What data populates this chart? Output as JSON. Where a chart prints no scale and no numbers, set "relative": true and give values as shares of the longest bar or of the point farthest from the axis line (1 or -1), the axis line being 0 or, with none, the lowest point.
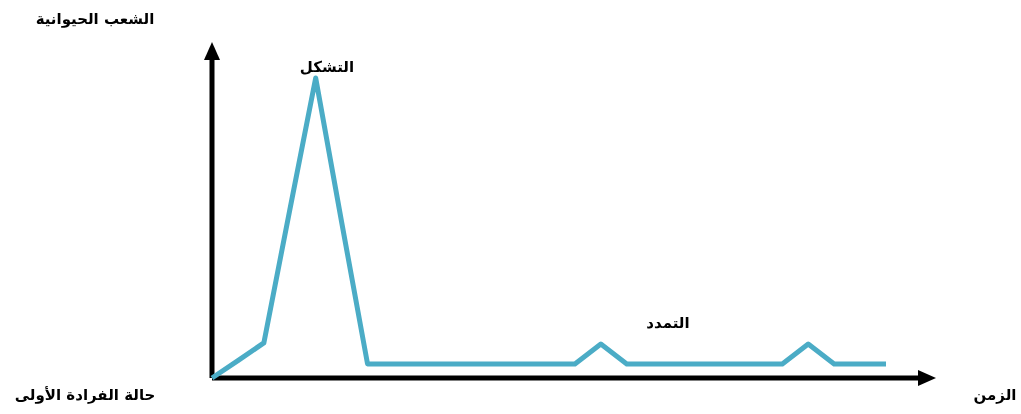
{
  "chart_data": {
    "type": "line",
    "relative": true,
    "line_style": "solid",
    "xlabel": "الزمن",
    "categories": [
      null,
      null,
      null,
      null,
      null,
      null,
      null,
      null,
      null,
      null,
      null,
      null,
      null,
      null,
      null,
      null,
      null,
      null,
      null,
      null,
      null,
      null,
      null,
      null,
      null,
      null,
      null
    ],
    "series": [
      {
        "color": "#4bacc6",
        "values": [
          0,
          0.058,
          0.117,
          0.56,
          1,
          0.52,
          0.047,
          0.047,
          0.047,
          0.047,
          0.047,
          0.047,
          0.047,
          0.047,
          0.047,
          0.113,
          0.047,
          0.047,
          0.047,
          0.047,
          0.047,
          0.047,
          0.047,
          0.113,
          0.047,
          0.047,
          0.047
        ]
      }
    ],
    "annotations": [
      "التشكل",
      "التمدد",
      "حالة الفرادة الأولى",
      "الشعب الحيوانية"
    ]
  }
}
